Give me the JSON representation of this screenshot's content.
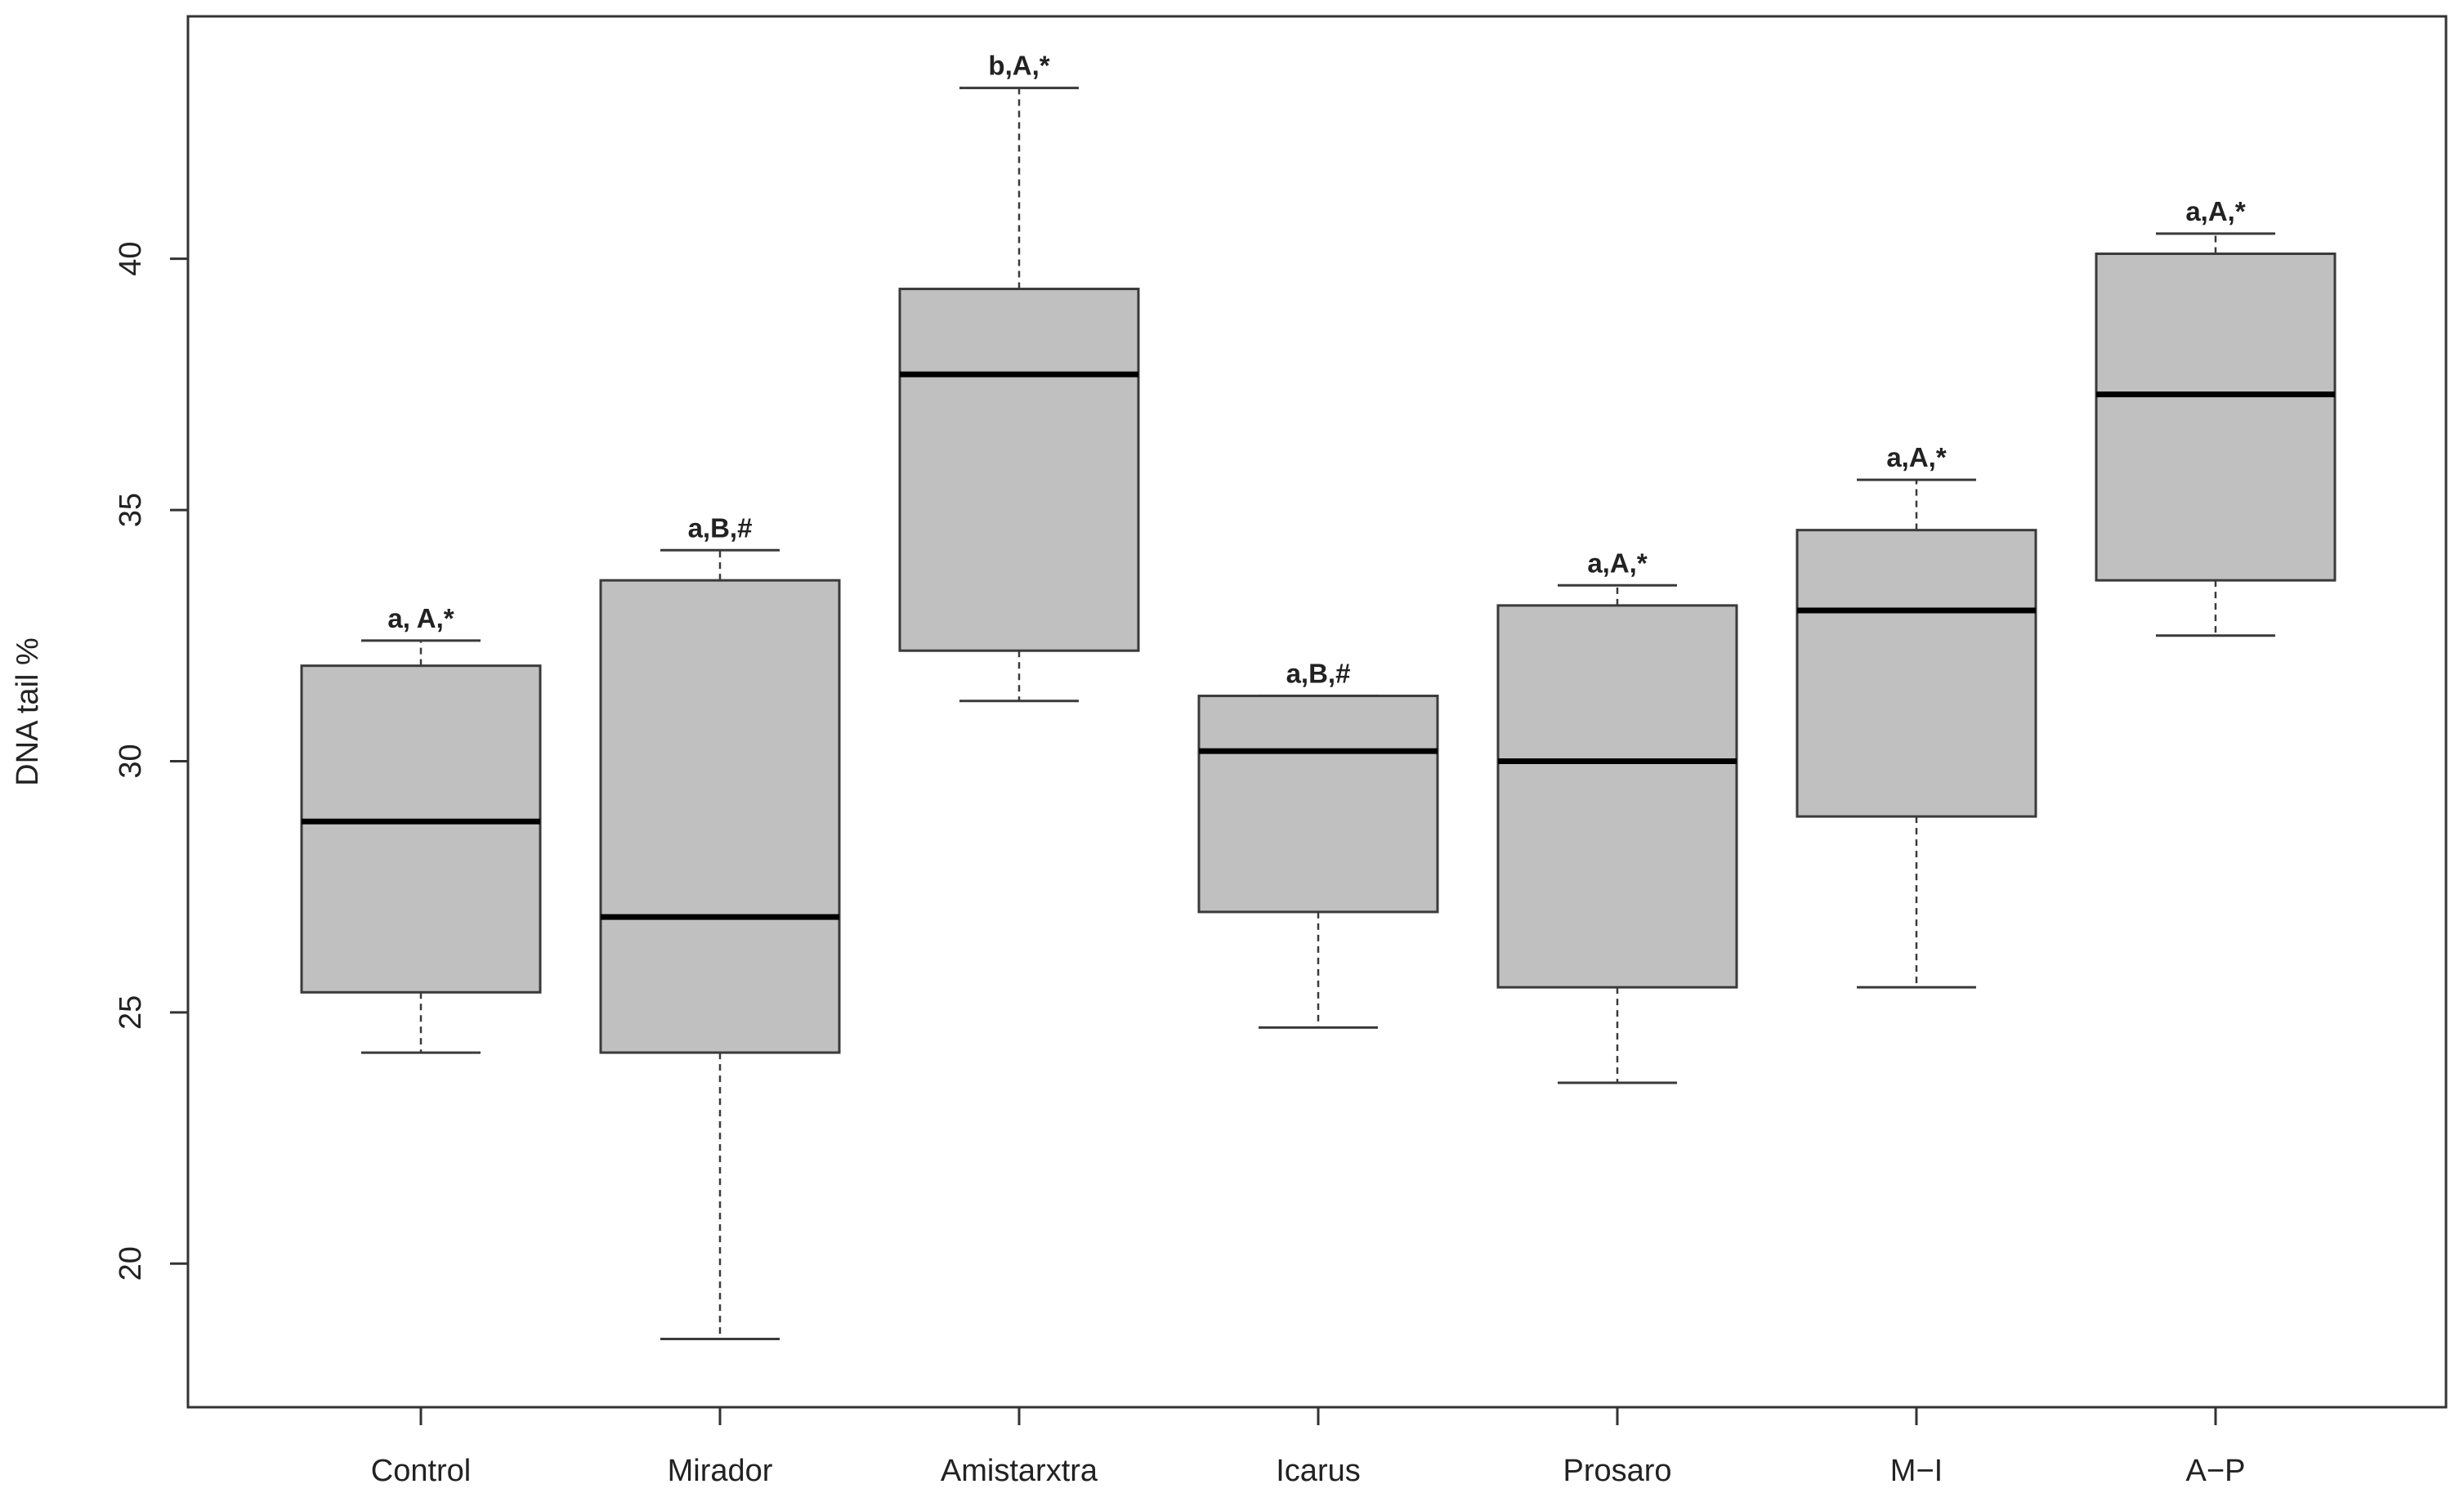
{
  "chart_data": {
    "type": "box",
    "title": "",
    "xlabel": "",
    "ylabel": "DNA tail %",
    "ylim": [
      17.5,
      44.5
    ],
    "yticks": [
      20,
      25,
      30,
      35,
      40
    ],
    "categories": [
      "Control",
      "Mirador",
      "Amistarxtra",
      "Icarus",
      "Prosaro",
      "M−I",
      "A−P"
    ],
    "boxes": [
      {
        "name": "Control",
        "min": 24.2,
        "q1": 25.4,
        "median": 28.8,
        "q3": 31.9,
        "max": 32.4,
        "annotation": "a, A,*"
      },
      {
        "name": "Mirador",
        "min": 18.5,
        "q1": 24.2,
        "median": 26.9,
        "q3": 33.6,
        "max": 34.2,
        "annotation": "a,B,#"
      },
      {
        "name": "Amistarxtra",
        "min": 31.2,
        "q1": 32.2,
        "median": 37.7,
        "q3": 39.4,
        "max": 43.4,
        "annotation": "b,A,*"
      },
      {
        "name": "Icarus",
        "min": 24.7,
        "q1": 27.0,
        "median": 30.2,
        "q3": 31.3,
        "max": 31.3,
        "annotation": "a,B,#"
      },
      {
        "name": "Prosaro",
        "min": 23.6,
        "q1": 25.5,
        "median": 30.0,
        "q3": 33.1,
        "max": 33.5,
        "annotation": "a,A,*"
      },
      {
        "name": "M−I",
        "min": 25.5,
        "q1": 28.9,
        "median": 33.0,
        "q3": 34.6,
        "max": 35.6,
        "annotation": "a,A,*"
      },
      {
        "name": "A−P",
        "min": 32.5,
        "q1": 33.6,
        "median": 37.3,
        "q3": 40.1,
        "max": 40.5,
        "annotation": "a,A,*"
      }
    ],
    "colors": {
      "box_fill": "#c0c0c0",
      "box_stroke": "#3a3a3a",
      "median": "#000000",
      "whisker": "#3a3a3a",
      "axis": "#333333",
      "text": "#222222"
    }
  }
}
